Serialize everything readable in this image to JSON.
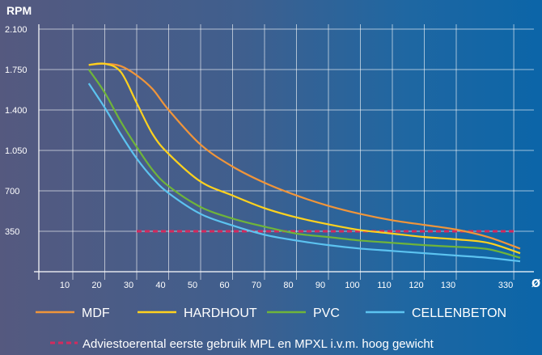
{
  "chart_data": {
    "type": "line",
    "ylabel": "RPM",
    "xlabel": "Ø",
    "ylim": [
      0,
      2100
    ],
    "x_ticks": [
      "10",
      "20",
      "30",
      "40",
      "50",
      "60",
      "70",
      "80",
      "90",
      "100",
      "110",
      "120",
      "130",
      "330"
    ],
    "y_ticks": [
      "2.100",
      "1.750",
      "1.400",
      "1.050",
      "700",
      "350"
    ],
    "y_tick_values": [
      2100,
      1750,
      1400,
      1050,
      700,
      350
    ],
    "grid": true,
    "legend_position": "bottom",
    "series": [
      {
        "name": "MDF",
        "color": "#f0953a",
        "x": [
          15,
          20,
          25,
          30,
          35,
          40,
          50,
          60,
          70,
          80,
          90,
          100,
          110,
          120,
          130,
          140,
          150
        ],
        "y": [
          1790,
          1800,
          1780,
          1700,
          1580,
          1400,
          1100,
          910,
          770,
          660,
          570,
          500,
          445,
          405,
          365,
          300,
          200
        ]
      },
      {
        "name": "HARDHOUT",
        "color": "#ffd21e",
        "x": [
          15,
          20,
          25,
          30,
          35,
          40,
          50,
          60,
          70,
          80,
          90,
          100,
          110,
          120,
          130,
          140,
          150
        ],
        "y": [
          1790,
          1800,
          1730,
          1460,
          1190,
          1020,
          780,
          660,
          550,
          470,
          410,
          360,
          330,
          300,
          280,
          250,
          160
        ]
      },
      {
        "name": "PVC",
        "color": "#6fb43a",
        "x": [
          15,
          20,
          25,
          30,
          35,
          40,
          50,
          60,
          70,
          80,
          90,
          100,
          110,
          120,
          130,
          140,
          150
        ],
        "y": [
          1750,
          1550,
          1300,
          1080,
          880,
          740,
          560,
          460,
          390,
          330,
          300,
          270,
          250,
          230,
          215,
          195,
          120
        ]
      },
      {
        "name": "CELLENBETON",
        "color": "#5cc3f0",
        "x": [
          15,
          20,
          25,
          30,
          35,
          40,
          50,
          60,
          70,
          80,
          90,
          100,
          110,
          120,
          130,
          140,
          150
        ],
        "y": [
          1630,
          1420,
          1190,
          980,
          810,
          680,
          500,
          400,
          320,
          270,
          230,
          200,
          180,
          160,
          140,
          120,
          90
        ]
      }
    ],
    "reference_line": {
      "label": "Adviestoerental eerste gebruik MPL en MPXL i.v.m. hoog gewicht",
      "color": "#d42a5e",
      "y": 350,
      "x": [
        30,
        148
      ]
    }
  }
}
